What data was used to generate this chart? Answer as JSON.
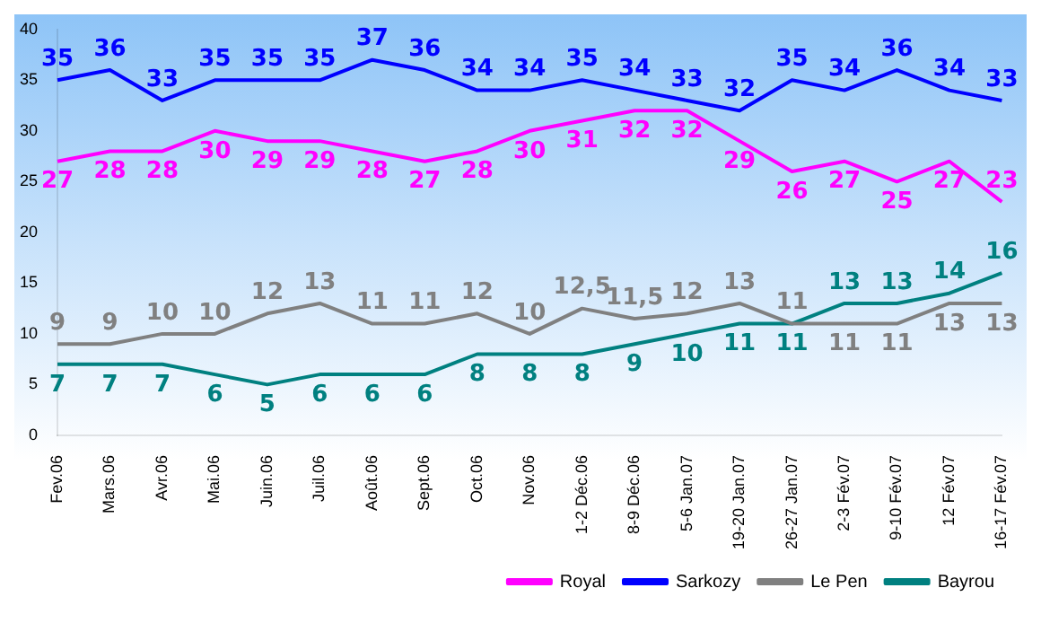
{
  "chart_data": {
    "type": "line",
    "categories": [
      "Fev.06",
      "Mars.06",
      "Avr.06",
      "Mai.06",
      "Juin.06",
      "Juil.06",
      "Août.06",
      "Sept.06",
      "Oct.06",
      "Nov.06",
      "1-2 Déc.06",
      "8-9 Déc.06",
      "5-6 Jan.07",
      "19-20 Jan.07",
      "26-27 Jan.07",
      "2-3 Fév.07",
      "9-10 Fév.07",
      "12 Fév.07",
      "16-17 Fév.07"
    ],
    "series": [
      {
        "name": "Royal",
        "color": "#ff00ff",
        "values": [
          27,
          28,
          28,
          30,
          29,
          29,
          28,
          27,
          28,
          30,
          31,
          32,
          32,
          29,
          26,
          27,
          25,
          27,
          23
        ],
        "value_labels": [
          "27",
          "28",
          "28",
          "30",
          "29",
          "29",
          "28",
          "27",
          "28",
          "30",
          "31",
          "32",
          "32",
          "29",
          "26",
          "27",
          "25",
          "27",
          "23"
        ]
      },
      {
        "name": "Sarkozy",
        "color": "#0000ff",
        "values": [
          35,
          36,
          33,
          35,
          35,
          35,
          37,
          36,
          34,
          34,
          35,
          34,
          33,
          32,
          35,
          34,
          36,
          34,
          33
        ],
        "value_labels": [
          "35",
          "36",
          "33",
          "35",
          "35",
          "35",
          "37",
          "36",
          "34",
          "34",
          "35",
          "34",
          "33",
          "32",
          "35",
          "34",
          "36",
          "34",
          "33"
        ]
      },
      {
        "name": "Le Pen",
        "color": "#808080",
        "values": [
          9,
          9,
          10,
          10,
          12,
          13,
          11,
          11,
          12,
          10,
          12.5,
          11.5,
          12,
          13,
          11,
          11,
          11,
          13,
          13
        ],
        "value_labels": [
          "9",
          "9",
          "10",
          "10",
          "12",
          "13",
          "11",
          "11",
          "12",
          "10",
          "12,5",
          "11,5",
          "12",
          "13",
          "11",
          "11",
          "11",
          "13",
          "13"
        ]
      },
      {
        "name": "Bayrou",
        "color": "#008080",
        "values": [
          7,
          7,
          7,
          6,
          5,
          6,
          6,
          6,
          8,
          8,
          8,
          9,
          10,
          11,
          11,
          13,
          13,
          14,
          16
        ],
        "value_labels": [
          "7",
          "7",
          "7",
          "6",
          "5",
          "6",
          "6",
          "6",
          "8",
          "8",
          "8",
          "9",
          "10",
          "11",
          "11",
          "13",
          "13",
          "14",
          "16"
        ]
      }
    ],
    "ylim": [
      0,
      40
    ],
    "yticks": [
      0,
      5,
      10,
      15,
      20,
      25,
      30,
      35,
      40
    ],
    "grid": false,
    "legend": "bottom right",
    "marker": "none",
    "line_style": "solid"
  }
}
